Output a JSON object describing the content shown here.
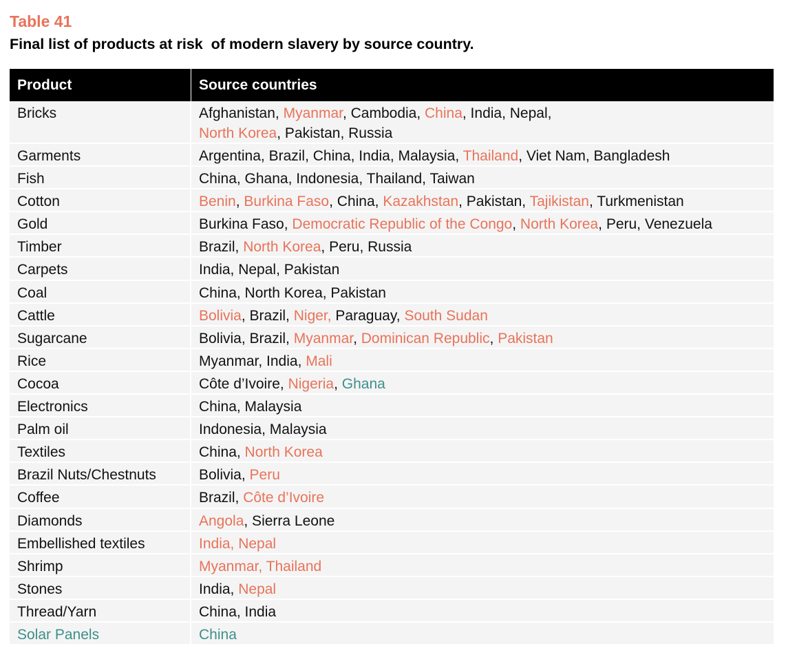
{
  "table_label": "Table 41",
  "table_title": "Final list of products at risk  of modern slavery by source country.",
  "colors": {
    "label": "#e8735a",
    "highlight": "#e8735a",
    "teal": "#3e8f8a",
    "header_bg": "#000000",
    "row_bg": "#f4f4f4"
  },
  "headers": {
    "product": "Product",
    "source_countries": "Source countries"
  },
  "rows": [
    {
      "product": "Bricks",
      "tall": true,
      "segments": [
        {
          "t": "Afghanistan, ",
          "c": "normal"
        },
        {
          "t": "Myanmar",
          "c": "highlight"
        },
        {
          "t": ", Cambodia, ",
          "c": "normal"
        },
        {
          "t": "China",
          "c": "highlight"
        },
        {
          "t": ", India, Nepal,",
          "c": "normal"
        },
        {
          "t": "\n",
          "c": "break"
        },
        {
          "t": "North Korea",
          "c": "highlight"
        },
        {
          "t": ", Pakistan, Russia",
          "c": "normal"
        }
      ]
    },
    {
      "product": "Garments",
      "segments": [
        {
          "t": "Argentina, Brazil, China, India, Malaysia, ",
          "c": "normal"
        },
        {
          "t": "Thailand",
          "c": "highlight"
        },
        {
          "t": ", Viet Nam, Bangladesh",
          "c": "normal"
        }
      ]
    },
    {
      "product": "Fish",
      "segments": [
        {
          "t": "China, Ghana, Indonesia, Thailand, Taiwan",
          "c": "normal"
        }
      ]
    },
    {
      "product": "Cotton",
      "segments": [
        {
          "t": "Benin",
          "c": "highlight"
        },
        {
          "t": ", ",
          "c": "normal"
        },
        {
          "t": "Burkina Faso",
          "c": "highlight"
        },
        {
          "t": ", China, ",
          "c": "normal"
        },
        {
          "t": "Kazakhstan",
          "c": "highlight"
        },
        {
          "t": ", Pakistan, ",
          "c": "normal"
        },
        {
          "t": "Tajikistan",
          "c": "highlight"
        },
        {
          "t": ", Turkmenistan",
          "c": "normal"
        }
      ]
    },
    {
      "product": "Gold",
      "segments": [
        {
          "t": "Burkina Faso, ",
          "c": "normal"
        },
        {
          "t": "Democratic Republic of the Congo",
          "c": "highlight"
        },
        {
          "t": ", ",
          "c": "normal"
        },
        {
          "t": "North Korea",
          "c": "highlight"
        },
        {
          "t": ", Peru, Venezuela",
          "c": "normal"
        }
      ]
    },
    {
      "product": "Timber",
      "segments": [
        {
          "t": "Brazil, ",
          "c": "normal"
        },
        {
          "t": "North Korea",
          "c": "highlight"
        },
        {
          "t": ", Peru, Russia",
          "c": "normal"
        }
      ]
    },
    {
      "product": "Carpets",
      "segments": [
        {
          "t": "India, Nepal, Pakistan",
          "c": "normal"
        }
      ]
    },
    {
      "product": "Coal",
      "segments": [
        {
          "t": "China, North Korea, Pakistan",
          "c": "normal"
        }
      ]
    },
    {
      "product": "Cattle",
      "segments": [
        {
          "t": "Bolivia",
          "c": "highlight"
        },
        {
          "t": ", Brazil, ",
          "c": "normal"
        },
        {
          "t": "Niger,",
          "c": "highlight"
        },
        {
          "t": " Paraguay, ",
          "c": "normal"
        },
        {
          "t": "South Sudan",
          "c": "highlight"
        }
      ]
    },
    {
      "product": "Sugarcane",
      "segments": [
        {
          "t": "Bolivia, Brazil, ",
          "c": "normal"
        },
        {
          "t": "Myanmar",
          "c": "highlight"
        },
        {
          "t": ", ",
          "c": "normal"
        },
        {
          "t": "Dominican Republic",
          "c": "highlight"
        },
        {
          "t": ", ",
          "c": "normal"
        },
        {
          "t": "Pakistan",
          "c": "highlight"
        }
      ]
    },
    {
      "product": "Rice",
      "segments": [
        {
          "t": "Myanmar, India, ",
          "c": "normal"
        },
        {
          "t": "Mali",
          "c": "highlight"
        }
      ]
    },
    {
      "product": "Cocoa",
      "segments": [
        {
          "t": "Côte d’Ivoire, ",
          "c": "normal"
        },
        {
          "t": "Nigeria",
          "c": "highlight"
        },
        {
          "t": ", ",
          "c": "normal"
        },
        {
          "t": "Ghana",
          "c": "teal"
        }
      ]
    },
    {
      "product": "Electronics",
      "segments": [
        {
          "t": "China, Malaysia",
          "c": "normal"
        }
      ]
    },
    {
      "product": "Palm oil",
      "segments": [
        {
          "t": "Indonesia, Malaysia",
          "c": "normal"
        }
      ]
    },
    {
      "product": "Textiles",
      "segments": [
        {
          "t": "China, ",
          "c": "normal"
        },
        {
          "t": "North Korea",
          "c": "highlight"
        }
      ]
    },
    {
      "product": "Brazil Nuts/Chestnuts",
      "segments": [
        {
          "t": "Bolivia, ",
          "c": "normal"
        },
        {
          "t": "Peru",
          "c": "highlight"
        }
      ]
    },
    {
      "product": "Coffee",
      "segments": [
        {
          "t": "Brazil, ",
          "c": "normal"
        },
        {
          "t": "Côte d’Ivoire",
          "c": "highlight"
        }
      ]
    },
    {
      "product": "Diamonds",
      "segments": [
        {
          "t": "Angola",
          "c": "highlight"
        },
        {
          "t": ", Sierra Leone",
          "c": "normal"
        }
      ]
    },
    {
      "product": "Embellished textiles",
      "segments": [
        {
          "t": "India, Nepal",
          "c": "highlight"
        }
      ]
    },
    {
      "product": "Shrimp",
      "segments": [
        {
          "t": "Myanmar, Thailand",
          "c": "highlight"
        }
      ]
    },
    {
      "product": "Stones",
      "segments": [
        {
          "t": "India, ",
          "c": "normal"
        },
        {
          "t": "Nepal",
          "c": "highlight"
        }
      ]
    },
    {
      "product": "Thread/Yarn",
      "segments": [
        {
          "t": "China, India",
          "c": "normal"
        }
      ]
    },
    {
      "product": "Solar Panels",
      "product_color": "teal",
      "segments": [
        {
          "t": "China",
          "c": "teal"
        }
      ]
    }
  ]
}
